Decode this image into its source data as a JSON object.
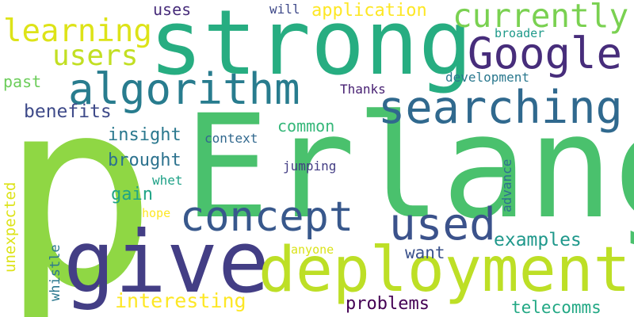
{
  "words": [
    {
      "text": "p",
      "color": "#8fd744"
    },
    {
      "text": "Erlang",
      "color": "#4ac16d"
    },
    {
      "text": "strong",
      "color": "#27ad81"
    },
    {
      "text": "give",
      "color": "#433e85"
    },
    {
      "text": "deployment",
      "color": "#bddf26"
    },
    {
      "text": "algorithm",
      "color": "#287c8e"
    },
    {
      "text": "searching",
      "color": "#30698e"
    },
    {
      "text": "concept",
      "color": "#38588c"
    },
    {
      "text": "Google",
      "color": "#472d7b"
    },
    {
      "text": "used",
      "color": "#3b528b"
    },
    {
      "text": "currently",
      "color": "#7ad151"
    },
    {
      "text": "learning",
      "color": "#dde318"
    },
    {
      "text": "users",
      "color": "#c2df23"
    },
    {
      "text": "application",
      "color": "#fde725"
    },
    {
      "text": "interesting",
      "color": "#fde725"
    },
    {
      "text": "examples",
      "color": "#1f988b"
    },
    {
      "text": "problems",
      "color": "#440154"
    },
    {
      "text": "telecomms",
      "color": "#22a884"
    },
    {
      "text": "benefits",
      "color": "#3e4a89"
    },
    {
      "text": "insight",
      "color": "#2a788e"
    },
    {
      "text": "brought",
      "color": "#2c728e"
    },
    {
      "text": "common",
      "color": "#35b779"
    },
    {
      "text": "gain",
      "color": "#20a486"
    },
    {
      "text": "want",
      "color": "#3b528b"
    },
    {
      "text": "uses",
      "color": "#472c7a"
    },
    {
      "text": "will",
      "color": "#3e4989"
    },
    {
      "text": "past",
      "color": "#6ccd5a"
    },
    {
      "text": "development",
      "color": "#2a788e"
    },
    {
      "text": "broader",
      "color": "#1f9a8a"
    },
    {
      "text": "Thanks",
      "color": "#482173"
    },
    {
      "text": "context",
      "color": "#31688e"
    },
    {
      "text": "jumping",
      "color": "#433d84"
    },
    {
      "text": "whet",
      "color": "#1fa187"
    },
    {
      "text": "hope",
      "color": "#fde725"
    },
    {
      "text": "anyone",
      "color": "#dae319"
    },
    {
      "text": "unexpected",
      "color": "#dde318"
    },
    {
      "text": "whistle",
      "color": "#2a778e"
    },
    {
      "text": "advance",
      "color": "#2d708e"
    }
  ]
}
